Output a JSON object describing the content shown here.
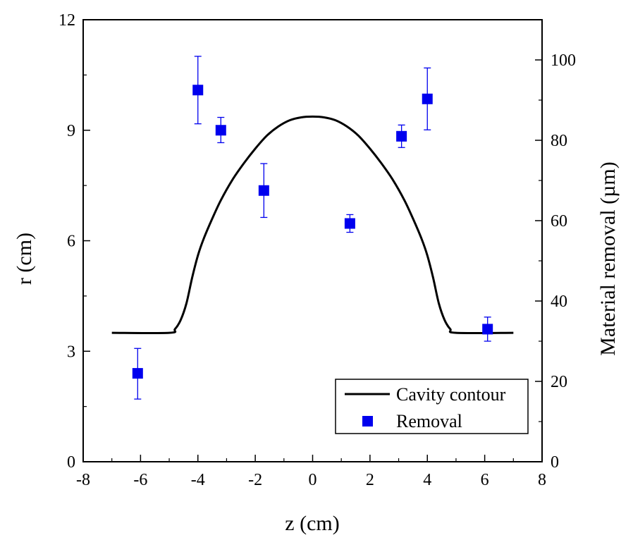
{
  "chart_data": {
    "type": "line+scatter",
    "xlabel": "z (cm)",
    "ylabel": "r (cm)",
    "y2label": "Material removal (µm)",
    "xlim": [
      -8,
      8
    ],
    "ylim": [
      0,
      12
    ],
    "y2lim": [
      0,
      110
    ],
    "xticks": [
      -8,
      -6,
      -4,
      -2,
      0,
      2,
      4,
      6,
      8
    ],
    "yticks": [
      0,
      3,
      6,
      9,
      12
    ],
    "y2ticks": [
      0,
      20,
      40,
      60,
      80,
      100
    ],
    "xtick_labels": [
      "-8",
      "-6",
      "-4",
      "-2",
      "0",
      "2",
      "4",
      "6",
      "8"
    ],
    "ytick_labels": [
      "0",
      "3",
      "6",
      "9",
      "12"
    ],
    "y2tick_labels": [
      "0",
      "20",
      "40",
      "60",
      "80",
      "100"
    ],
    "legend": {
      "position": "bottom-right",
      "entries": [
        "Cavity contour",
        "Removal"
      ]
    },
    "series": [
      {
        "name": "Cavity contour",
        "kind": "line",
        "axis": "left",
        "color": "#000000",
        "x": [
          -7.0,
          -5.0,
          -4.8,
          -4.6,
          -4.4,
          -4.2,
          -4.0,
          -3.8,
          -3.5,
          -3.2,
          -2.8,
          -2.4,
          -2.0,
          -1.6,
          -1.2,
          -0.8,
          -0.4,
          0.0,
          0.4,
          0.8,
          1.2,
          1.6,
          2.0,
          2.4,
          2.8,
          3.2,
          3.5,
          3.8,
          4.0,
          4.2,
          4.4,
          4.6,
          4.8,
          5.0,
          7.0
        ],
        "y": [
          3.5,
          3.5,
          3.6,
          3.85,
          4.3,
          5.0,
          5.6,
          6.05,
          6.6,
          7.1,
          7.65,
          8.1,
          8.5,
          8.85,
          9.1,
          9.27,
          9.35,
          9.37,
          9.35,
          9.27,
          9.1,
          8.85,
          8.5,
          8.1,
          7.65,
          7.1,
          6.6,
          6.05,
          5.6,
          5.0,
          4.3,
          3.85,
          3.6,
          3.5,
          3.5
        ]
      },
      {
        "name": "Removal",
        "kind": "scatter",
        "axis": "right",
        "color": "#0000ee",
        "x": [
          -6.1,
          -4.0,
          -3.2,
          -1.7,
          1.3,
          3.1,
          4.0,
          6.1
        ],
        "y": [
          22.0,
          92.5,
          82.5,
          67.5,
          59.3,
          81.0,
          90.3,
          33.0
        ],
        "err_low": [
          6.4,
          8.4,
          3.1,
          6.7,
          2.2,
          2.8,
          7.7,
          3.0
        ],
        "err_high": [
          6.2,
          8.4,
          3.2,
          6.7,
          2.2,
          2.8,
          7.7,
          3.0
        ]
      }
    ]
  }
}
